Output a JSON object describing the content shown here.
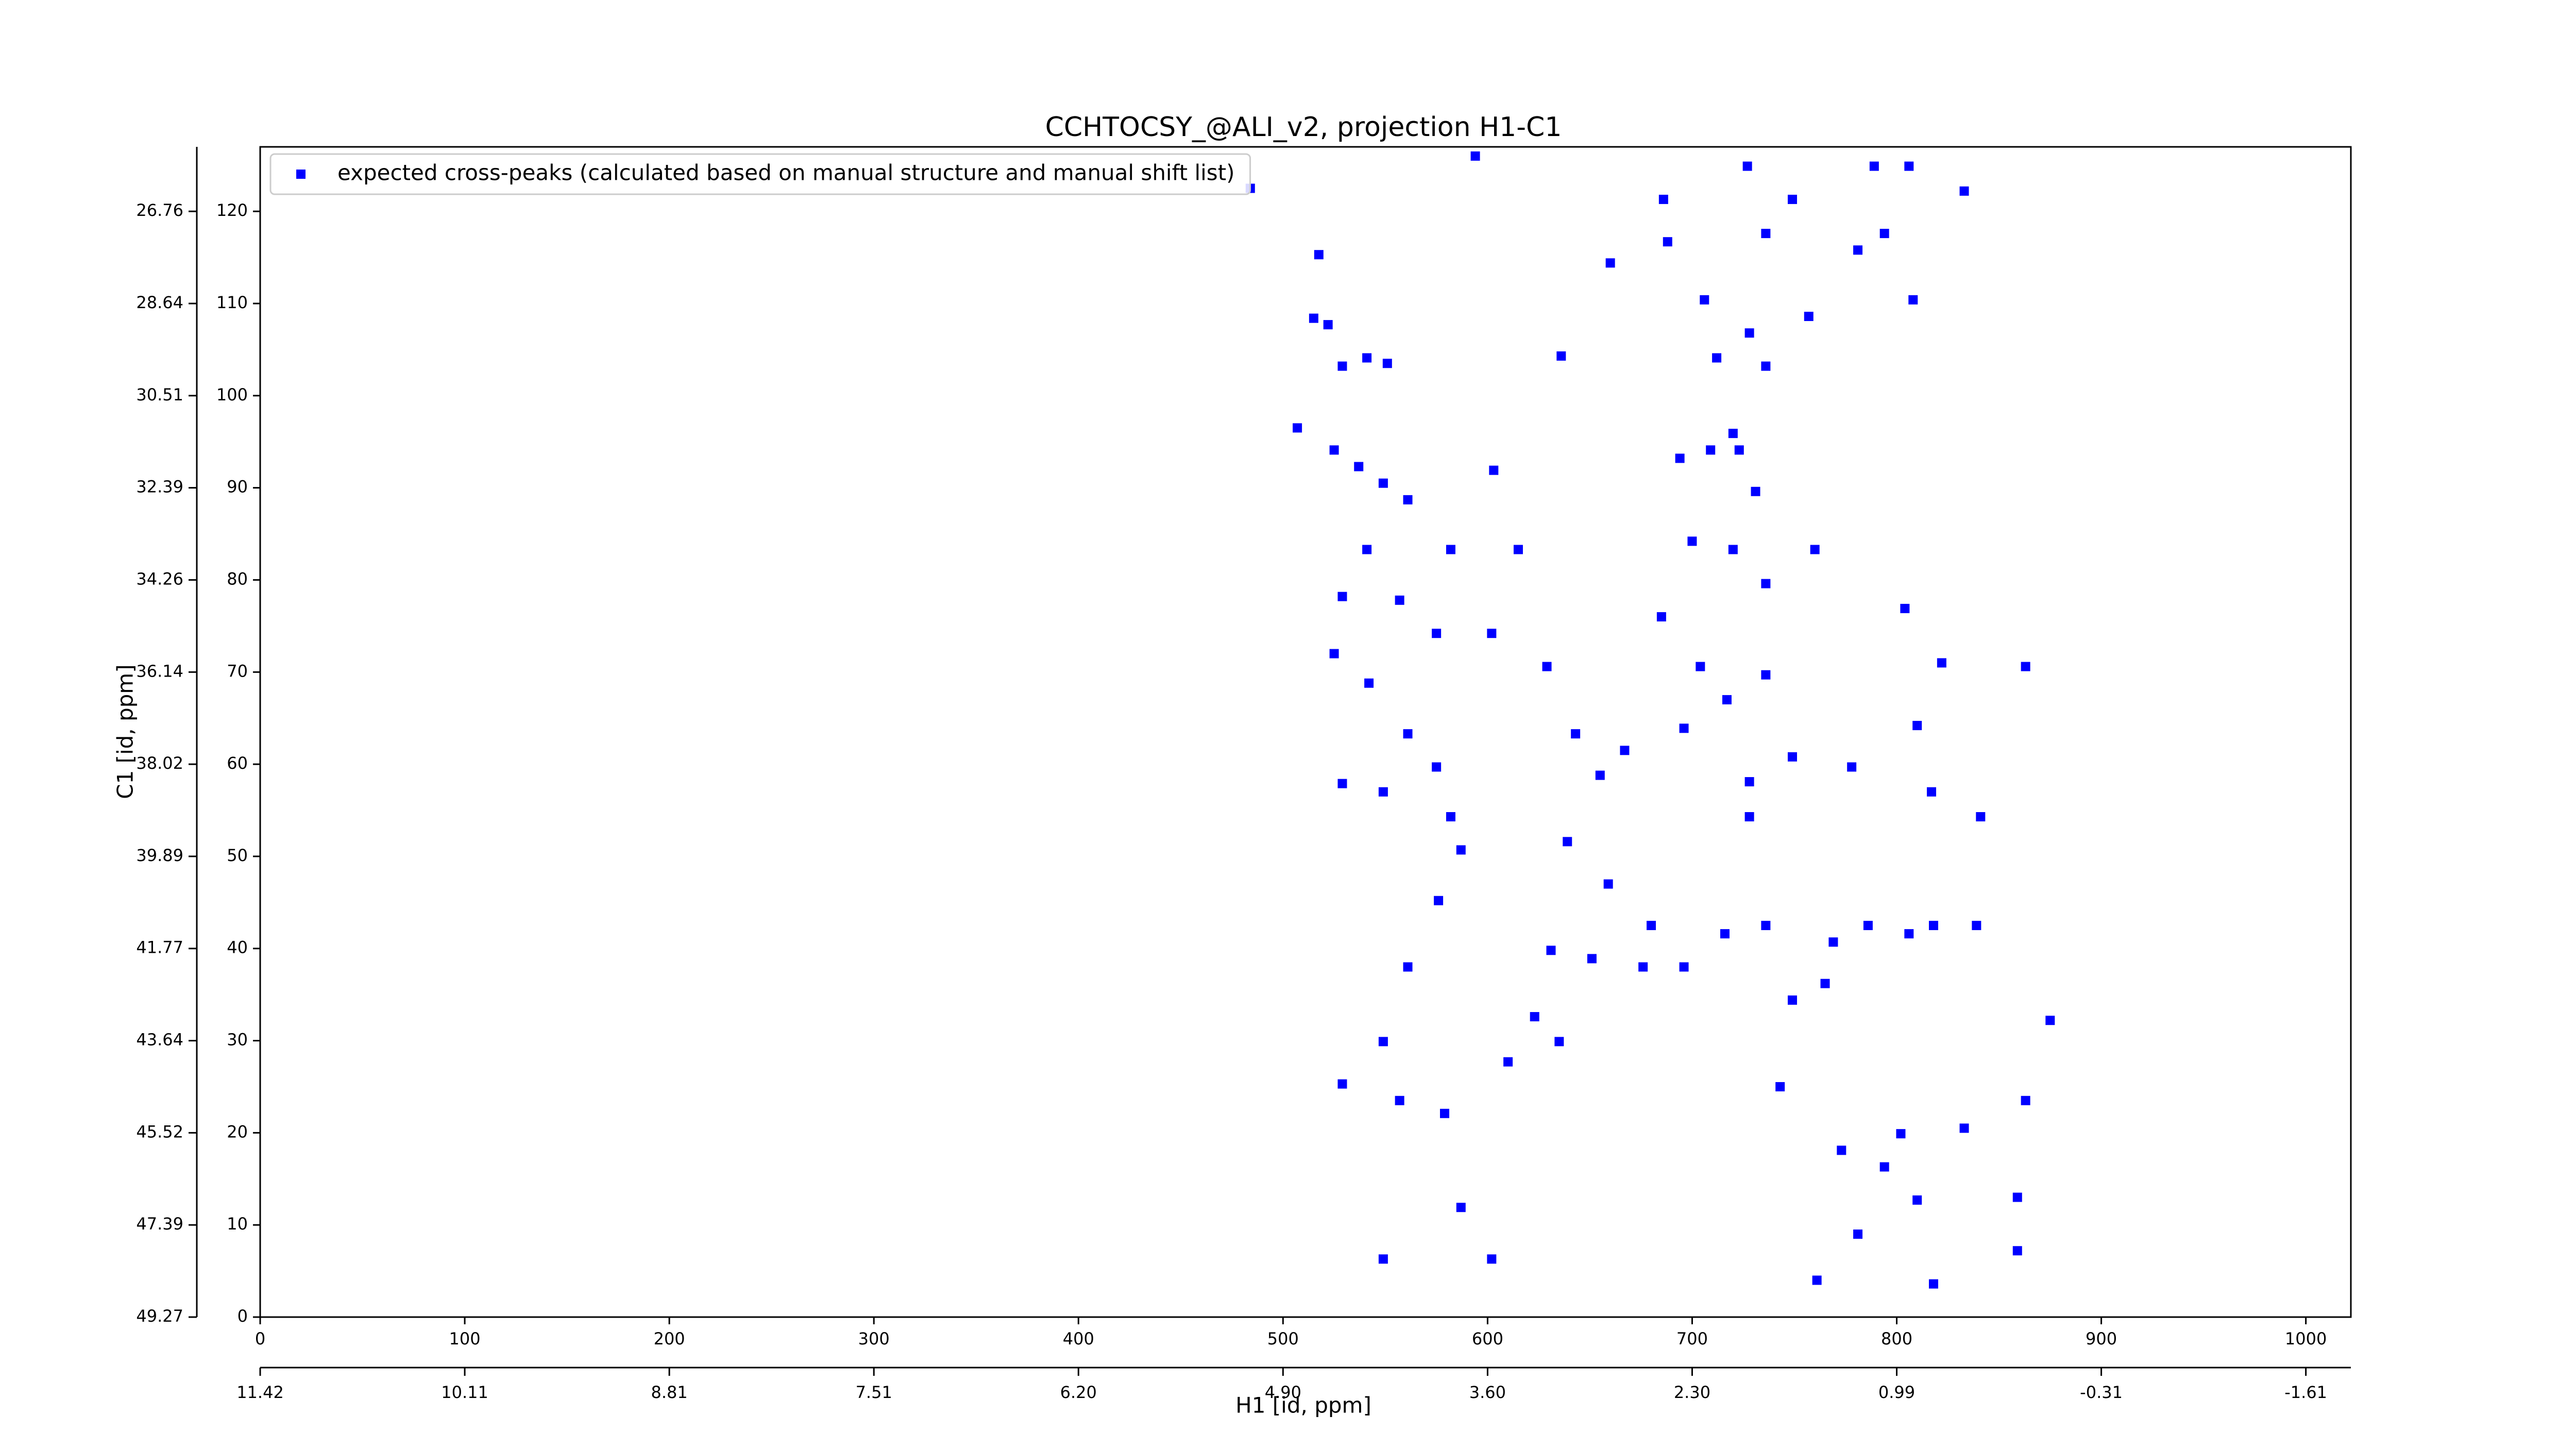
{
  "chart_data": {
    "type": "scatter",
    "title": "CCHTOCSY_@ALI_v2, projection H1-C1",
    "xlabel": "H1 [id, ppm]",
    "ylabel": "C1 [id, ppm]",
    "xlim": [
      0,
      1022
    ],
    "ylim": [
      0,
      127
    ],
    "xticks": [
      0,
      100,
      200,
      300,
      400,
      500,
      600,
      700,
      800,
      900,
      1000
    ],
    "yticks": [
      0,
      10,
      20,
      30,
      40,
      50,
      60,
      70,
      80,
      90,
      100,
      110,
      120
    ],
    "x2ticks": [
      {
        "value": 0,
        "label": "11.42"
      },
      {
        "value": 100,
        "label": "10.11"
      },
      {
        "value": 200,
        "label": "8.81"
      },
      {
        "value": 300,
        "label": "7.51"
      },
      {
        "value": 400,
        "label": "6.20"
      },
      {
        "value": 500,
        "label": "4.90"
      },
      {
        "value": 600,
        "label": "3.60"
      },
      {
        "value": 700,
        "label": "2.30"
      },
      {
        "value": 800,
        "label": "0.99"
      },
      {
        "value": 900,
        "label": "-0.31"
      },
      {
        "value": 1000,
        "label": "-1.61"
      }
    ],
    "y2ticks": [
      {
        "value": 0,
        "label": "49.27"
      },
      {
        "value": 10,
        "label": "47.39"
      },
      {
        "value": 20,
        "label": "45.52"
      },
      {
        "value": 30,
        "label": "43.64"
      },
      {
        "value": 40,
        "label": "41.77"
      },
      {
        "value": 50,
        "label": "39.89"
      },
      {
        "value": 60,
        "label": "38.02"
      },
      {
        "value": 70,
        "label": "36.14"
      },
      {
        "value": 80,
        "label": "34.26"
      },
      {
        "value": 90,
        "label": "32.39"
      },
      {
        "value": 100,
        "label": "30.51"
      },
      {
        "value": 110,
        "label": "28.64"
      },
      {
        "value": 120,
        "label": "26.76"
      }
    ],
    "legend": "upper left",
    "series": [
      {
        "name": "expected cross-peaks (calculated based on manual structure and manual shift list)",
        "color": "#0000ff",
        "x": [
          484,
          517.5,
          515,
          522,
          529,
          541,
          551,
          507,
          525,
          537,
          549,
          561,
          541,
          529,
          557,
          575,
          525,
          542,
          561,
          575,
          529,
          549,
          582,
          587,
          576,
          561,
          549,
          529,
          557,
          579,
          587,
          549,
          602,
          603,
          602,
          582,
          615,
          629,
          643,
          655,
          667,
          639,
          659,
          680,
          631,
          651,
          676,
          623,
          635,
          610,
          636,
          660,
          686,
          688,
          706,
          694,
          709,
          720,
          712,
          728,
          736,
          727,
          736,
          749,
          757,
          731,
          723,
          700,
          720,
          736,
          760,
          685,
          704,
          717,
          736,
          696,
          728,
          749,
          728,
          696,
          716,
          736,
          749,
          765,
          743,
          769,
          773,
          781,
          794,
          802,
          810,
          818,
          761,
          786,
          806,
          818,
          839,
          778,
          810,
          817,
          804,
          822,
          841,
          863,
          859,
          859,
          863,
          875,
          833,
          806,
          794,
          781,
          808,
          789,
          833,
          594
        ],
        "y": [
          122.5,
          115.3,
          108.4,
          107.7,
          103.2,
          104.1,
          103.5,
          96.5,
          94.1,
          92.3,
          90.5,
          88.7,
          83.3,
          78.2,
          77.8,
          74.2,
          72,
          68.8,
          63.3,
          59.7,
          57.9,
          57,
          54.3,
          50.7,
          45.2,
          38,
          29.9,
          25.3,
          23.5,
          22.1,
          11.9,
          6.3,
          6.3,
          91.9,
          74.2,
          83.3,
          83.3,
          70.6,
          63.3,
          58.8,
          61.5,
          51.6,
          47,
          42.5,
          39.8,
          38.9,
          38,
          32.6,
          29.9,
          27.7,
          104.3,
          114.4,
          121.3,
          116.7,
          110.4,
          93.2,
          94.1,
          95.9,
          104.1,
          106.8,
          103.2,
          124.9,
          117.6,
          121.3,
          108.6,
          89.6,
          94.1,
          84.2,
          83.3,
          79.6,
          83.3,
          76,
          70.6,
          67,
          69.7,
          63.9,
          58.1,
          60.8,
          54.3,
          38,
          41.6,
          42.5,
          34.4,
          36.2,
          25,
          40.7,
          18.1,
          9,
          16.3,
          19.9,
          12.7,
          3.6,
          4,
          42.5,
          41.6,
          42.5,
          42.5,
          59.7,
          64.2,
          57,
          76.9,
          71,
          54.3,
          70.6,
          13,
          7.2,
          23.5,
          32.2,
          122.2,
          124.9,
          117.6,
          115.8,
          110.4,
          124.9,
          20.5,
          126
        ]
      }
    ]
  }
}
